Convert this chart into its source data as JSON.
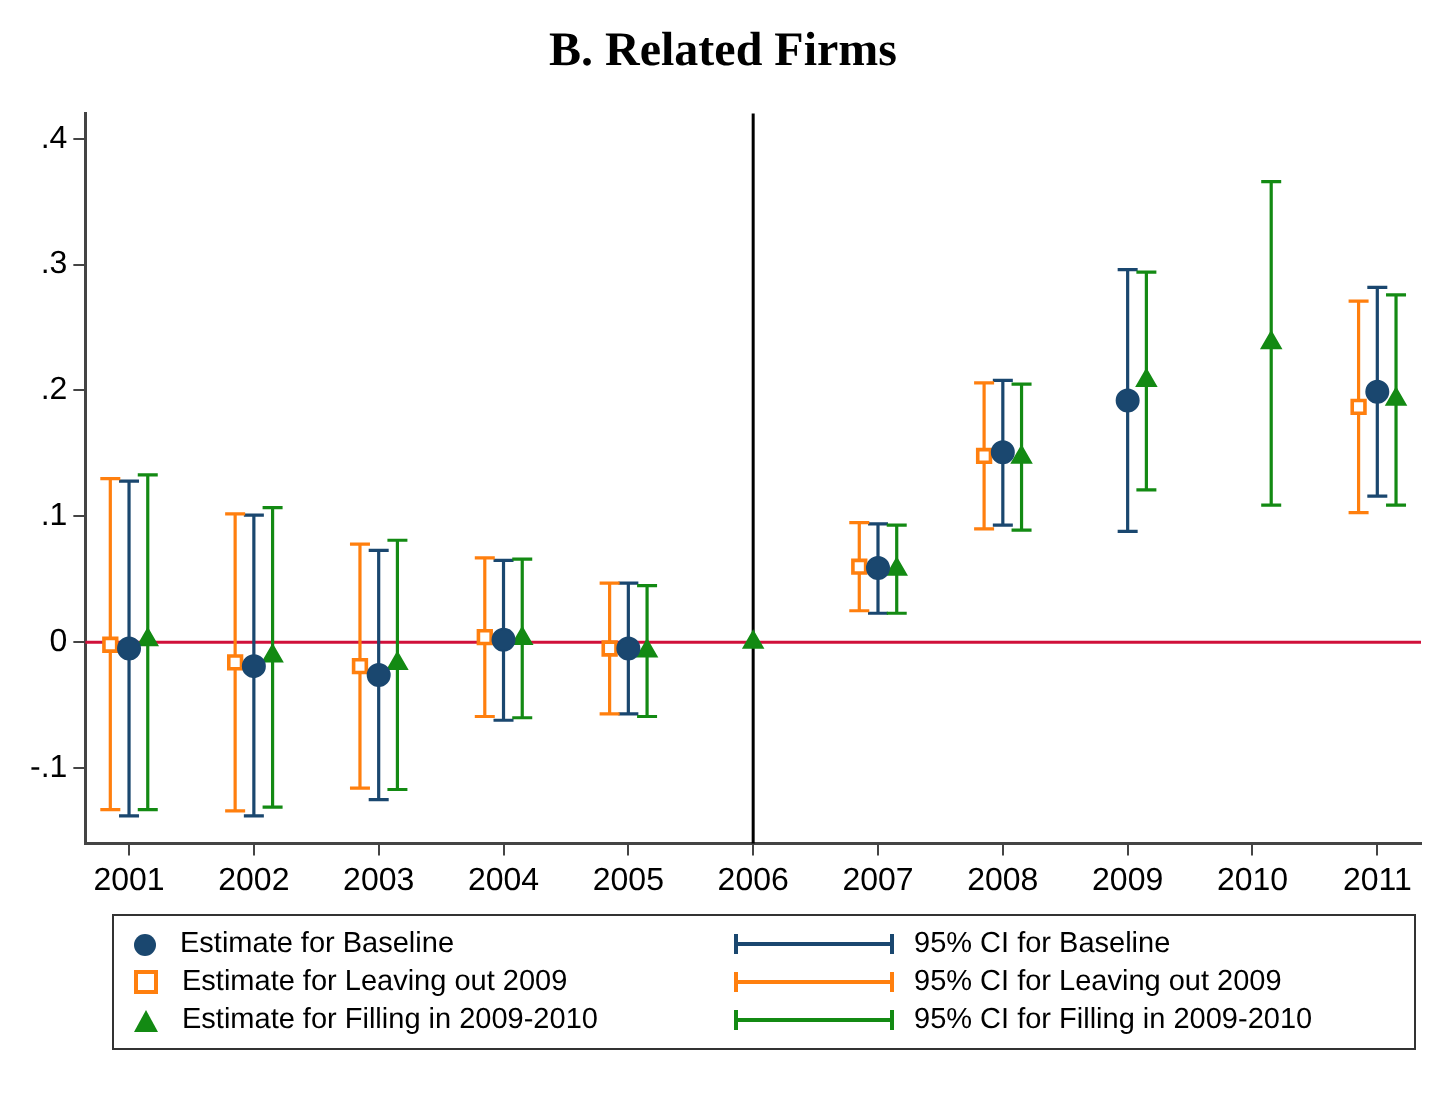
{
  "chart_data": {
    "type": "scatter",
    "title": "B. Related Firms",
    "xlim": [
      2000.65,
      2011.35
    ],
    "xticks": [
      2001,
      2002,
      2003,
      2004,
      2005,
      2006,
      2007,
      2008,
      2009,
      2010,
      2011
    ],
    "ylim": [
      -0.16,
      0.42
    ],
    "yticks": [
      {
        "value": -0.1,
        "label": "-.1"
      },
      {
        "value": 0,
        "label": "0"
      },
      {
        "value": 0.1,
        "label": ".1"
      },
      {
        "value": 0.2,
        "label": ".2"
      },
      {
        "value": 0.3,
        "label": ".3"
      },
      {
        "value": 0.4,
        "label": ".4"
      }
    ],
    "grid": false,
    "legend": "bottom",
    "ref_lines": [
      {
        "axis": "x",
        "value": 2006,
        "color": "#000000"
      },
      {
        "axis": "y",
        "value": 0,
        "color": "#d0103a"
      }
    ],
    "annotations": [
      "95% CI for Baseline",
      "95% CI for Leaving out 2009",
      "95% CI for Filling in 2009-2010"
    ],
    "series": [
      {
        "name": "Estimate for Baseline",
        "color": "#1a476f",
        "marker": "circle",
        "x": [
          2001,
          2002,
          2003,
          2004,
          2005,
          2006,
          2007,
          2008,
          2009,
          2010,
          2011
        ],
        "values": [
          -0.005,
          -0.019,
          -0.026,
          0.002,
          -0.005,
          null,
          0.059,
          0.151,
          0.192,
          null,
          0.199
        ],
        "errors": [
          [
            -0.138,
            0.128
          ],
          [
            -0.138,
            0.101
          ],
          [
            -0.125,
            0.073
          ],
          [
            -0.062,
            0.065
          ],
          [
            -0.057,
            0.047
          ],
          null,
          [
            0.023,
            0.094
          ],
          [
            0.093,
            0.208
          ],
          [
            0.088,
            0.296
          ],
          null,
          [
            0.116,
            0.282
          ]
        ]
      },
      {
        "name": "Estimate for Leaving out 2009",
        "color": "#ff7f0e",
        "marker": "square",
        "x": [
          2000.85,
          2001.85,
          2002.85,
          2003.85,
          2004.85,
          2006,
          2006.85,
          2007.85,
          2008.85,
          2009.85,
          2010.85
        ],
        "values": [
          -0.002,
          -0.016,
          -0.019,
          0.004,
          -0.005,
          null,
          0.06,
          0.148,
          null,
          null,
          0.187
        ],
        "errors": [
          [
            -0.133,
            0.13
          ],
          [
            -0.134,
            0.102
          ],
          [
            -0.116,
            0.078
          ],
          [
            -0.059,
            0.067
          ],
          [
            -0.057,
            0.047
          ],
          null,
          [
            0.025,
            0.095
          ],
          [
            0.09,
            0.206
          ],
          null,
          null,
          [
            0.103,
            0.271
          ]
        ]
      },
      {
        "name": "Estimate for Filling in 2009-2010",
        "color": "#138a13",
        "marker": "triangle",
        "x": [
          2001.15,
          2002.15,
          2003.15,
          2004.15,
          2005.15,
          2006,
          2007.15,
          2008.15,
          2009.15,
          2010.15,
          2011.15
        ],
        "values": [
          0.002,
          -0.011,
          -0.017,
          0.003,
          -0.007,
          0,
          0.058,
          0.147,
          0.208,
          0.238,
          0.193
        ],
        "errors": [
          [
            -0.133,
            0.133
          ],
          [
            -0.131,
            0.107
          ],
          [
            -0.117,
            0.081
          ],
          [
            -0.06,
            0.066
          ],
          [
            -0.059,
            0.045
          ],
          null,
          [
            0.023,
            0.093
          ],
          [
            0.089,
            0.205
          ],
          [
            0.121,
            0.294
          ],
          [
            0.109,
            0.366
          ],
          [
            0.109,
            0.276
          ]
        ]
      }
    ]
  }
}
